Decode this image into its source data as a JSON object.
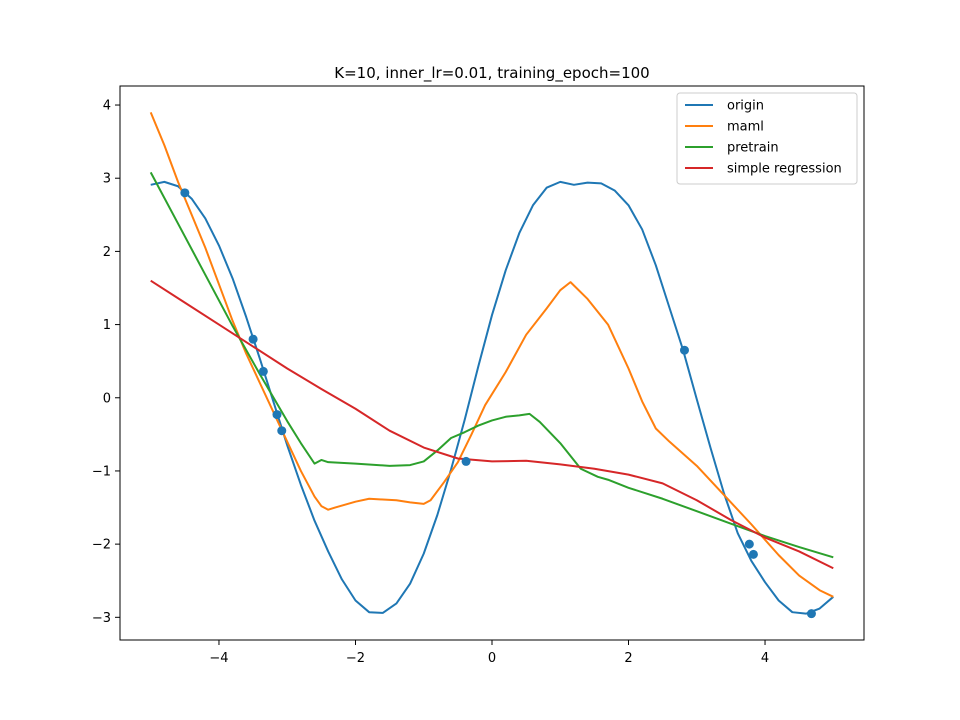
{
  "chart_data": {
    "type": "line",
    "title": "K=10, inner_lr=0.01, training_epoch=100",
    "xlabel": "",
    "ylabel": "",
    "xlim": [
      -5.45,
      5.45
    ],
    "ylim": [
      -3.31,
      4.26
    ],
    "xticks": [
      -4,
      -2,
      0,
      2,
      4
    ],
    "yticks": [
      -3,
      -2,
      -1,
      0,
      1,
      2,
      3,
      4
    ],
    "grid": false,
    "legend": "top-right",
    "series": [
      {
        "name": "origin",
        "color": "#1f77b4",
        "x": [
          -5.0,
          -4.8,
          -4.6,
          -4.4,
          -4.2,
          -4.0,
          -3.8,
          -3.6,
          -3.4,
          -3.2,
          -3.0,
          -2.8,
          -2.6,
          -2.4,
          -2.2,
          -2.0,
          -1.8,
          -1.6,
          -1.4,
          -1.2,
          -1.0,
          -0.8,
          -0.6,
          -0.4,
          -0.2,
          0.0,
          0.2,
          0.4,
          0.6,
          0.8,
          1.0,
          1.2,
          1.4,
          1.6,
          1.8,
          2.0,
          2.2,
          2.4,
          2.6,
          2.8,
          3.0,
          3.2,
          3.4,
          3.6,
          3.8,
          4.0,
          4.2,
          4.4,
          4.6,
          4.8,
          5.0
        ],
        "y": [
          2.91,
          2.95,
          2.89,
          2.72,
          2.45,
          2.08,
          1.63,
          1.1,
          0.53,
          -0.06,
          -0.65,
          -1.19,
          -1.68,
          -2.1,
          -2.48,
          -2.77,
          -2.93,
          -2.94,
          -2.81,
          -2.54,
          -2.13,
          -1.6,
          -0.98,
          -0.3,
          0.43,
          1.13,
          1.74,
          2.25,
          2.63,
          2.87,
          2.95,
          2.91,
          2.94,
          2.93,
          2.83,
          2.63,
          2.3,
          1.81,
          1.23,
          0.65,
          -0.02,
          -0.68,
          -1.31,
          -1.85,
          -2.23,
          -2.52,
          -2.77,
          -2.93,
          -2.95,
          -2.88,
          -2.72
        ]
      },
      {
        "name": "maml",
        "color": "#ff7f0e",
        "x": [
          -5.0,
          -4.8,
          -4.6,
          -4.4,
          -4.2,
          -4.0,
          -3.8,
          -3.6,
          -3.4,
          -3.2,
          -3.0,
          -2.8,
          -2.6,
          -2.5,
          -2.4,
          -2.3,
          -2.0,
          -1.8,
          -1.6,
          -1.4,
          -1.2,
          -1.0,
          -0.9,
          -0.7,
          -0.5,
          -0.3,
          -0.1,
          0.2,
          0.5,
          0.8,
          1.0,
          1.15,
          1.4,
          1.7,
          2.0,
          2.2,
          2.4,
          2.6,
          3.0,
          3.4,
          3.8,
          4.2,
          4.5,
          4.8,
          5.0
        ],
        "y": [
          3.9,
          3.45,
          2.95,
          2.5,
          2.05,
          1.55,
          1.05,
          0.6,
          0.2,
          -0.2,
          -0.6,
          -1.0,
          -1.35,
          -1.48,
          -1.53,
          -1.5,
          -1.42,
          -1.38,
          -1.39,
          -1.4,
          -1.43,
          -1.45,
          -1.4,
          -1.15,
          -0.88,
          -0.5,
          -0.1,
          0.35,
          0.86,
          1.22,
          1.47,
          1.58,
          1.35,
          1.0,
          0.4,
          -0.05,
          -0.42,
          -0.6,
          -0.93,
          -1.33,
          -1.73,
          -2.15,
          -2.43,
          -2.63,
          -2.72
        ]
      },
      {
        "name": "pretrain",
        "color": "#2ca02c",
        "x": [
          -5.0,
          -4.6,
          -4.2,
          -3.8,
          -3.4,
          -3.0,
          -2.8,
          -2.6,
          -2.5,
          -2.4,
          -2.0,
          -1.5,
          -1.2,
          -1.0,
          -0.8,
          -0.6,
          -0.4,
          -0.2,
          0.0,
          0.2,
          0.4,
          0.55,
          0.7,
          1.0,
          1.3,
          1.55,
          1.7,
          2.0,
          2.5,
          3.0,
          3.5,
          4.0,
          4.5,
          5.0
        ],
        "y": [
          3.08,
          2.38,
          1.68,
          0.98,
          0.32,
          -0.32,
          -0.62,
          -0.9,
          -0.85,
          -0.88,
          -0.9,
          -0.93,
          -0.92,
          -0.87,
          -0.72,
          -0.55,
          -0.47,
          -0.38,
          -0.31,
          -0.26,
          -0.24,
          -0.22,
          -0.33,
          -0.62,
          -0.97,
          -1.08,
          -1.12,
          -1.23,
          -1.38,
          -1.55,
          -1.72,
          -1.89,
          -2.04,
          -2.18
        ]
      },
      {
        "name": "simple regression",
        "color": "#d62728",
        "x": [
          -5.0,
          -4.5,
          -4.0,
          -3.5,
          -3.0,
          -2.5,
          -2.0,
          -1.5,
          -1.0,
          -0.5,
          0.0,
          0.5,
          1.0,
          1.5,
          2.0,
          2.5,
          3.0,
          3.5,
          4.0,
          4.5,
          5.0
        ],
        "y": [
          1.6,
          1.3,
          1.0,
          0.7,
          0.4,
          0.12,
          -0.15,
          -0.45,
          -0.68,
          -0.83,
          -0.87,
          -0.86,
          -0.91,
          -0.97,
          -1.05,
          -1.17,
          -1.4,
          -1.67,
          -1.91,
          -2.1,
          -2.33
        ]
      }
    ],
    "scatter": {
      "color": "#1f77b4",
      "x": [
        -4.5,
        -3.5,
        -3.35,
        -3.15,
        -3.08,
        -0.38,
        2.82,
        3.77,
        3.83,
        4.68
      ],
      "y": [
        2.8,
        0.8,
        0.36,
        -0.23,
        -0.45,
        -0.87,
        0.65,
        -2.0,
        -2.14,
        -2.95
      ]
    }
  }
}
